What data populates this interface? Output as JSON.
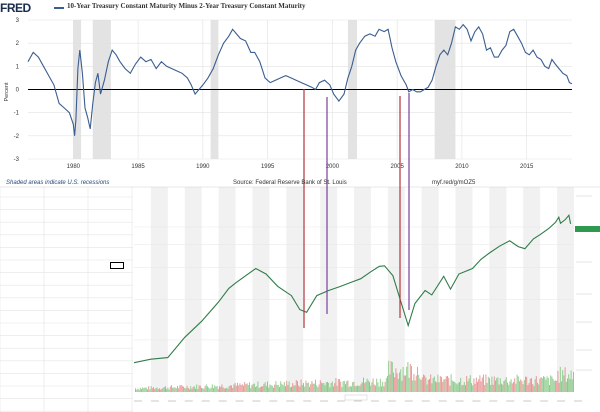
{
  "header": {
    "logo_text": "FRED",
    "title": "10-Year Treasury Constant Maturity Minus 2-Year Treasury Constant Maturity"
  },
  "footer": {
    "note": "Shaded areas indicate U.S. recessions",
    "source": "Source: Federal Reserve Bank of St. Louis",
    "url": "myf.red/g/mOZ5"
  },
  "colors": {
    "fred_line": "#3a5e91",
    "recession_shade": "#e3e3e3",
    "marker_red": "#b5343a",
    "marker_purple": "#7b3fa0",
    "price_line": "#2f7d4a",
    "volume_green": "#6fbf6c",
    "volume_red": "#e07a78"
  },
  "chart_data": [
    {
      "type": "line",
      "title": "10-Year Treasury Constant Maturity Minus 2-Year Treasury Constant Maturity",
      "ylabel": "Percent",
      "xlabel": "",
      "xlim": [
        1976.5,
        2018.5
      ],
      "ylim": [
        -3,
        3
      ],
      "x_ticks": [
        1980,
        1985,
        1990,
        1995,
        2000,
        2005,
        2010,
        2015
      ],
      "y_ticks": [
        -3,
        -2,
        -1,
        0,
        1,
        2,
        3
      ],
      "recessions": [
        [
          1980.0,
          1980.6
        ],
        [
          1981.5,
          1982.9
        ],
        [
          1990.6,
          1991.2
        ],
        [
          2001.2,
          2001.9
        ],
        [
          2007.9,
          2009.5
        ]
      ],
      "series": [
        {
          "values": [
            [
              1976.5,
              1.2
            ],
            [
              1976.9,
              1.6
            ],
            [
              1977.3,
              1.4
            ],
            [
              1977.7,
              1.0
            ],
            [
              1978.1,
              0.6
            ],
            [
              1978.5,
              0.2
            ],
            [
              1978.9,
              -0.6
            ],
            [
              1979.3,
              -0.8
            ],
            [
              1979.7,
              -1.0
            ],
            [
              1980.0,
              -1.5
            ],
            [
              1980.1,
              -2.0
            ],
            [
              1980.2,
              -1.3
            ],
            [
              1980.35,
              0.9
            ],
            [
              1980.5,
              1.7
            ],
            [
              1980.7,
              0.7
            ],
            [
              1980.9,
              -0.8
            ],
            [
              1981.1,
              -1.2
            ],
            [
              1981.3,
              -1.7
            ],
            [
              1981.5,
              -0.6
            ],
            [
              1981.7,
              0.3
            ],
            [
              1981.9,
              0.7
            ],
            [
              1982.1,
              -0.2
            ],
            [
              1982.4,
              0.4
            ],
            [
              1982.7,
              1.2
            ],
            [
              1983.0,
              1.7
            ],
            [
              1983.3,
              1.5
            ],
            [
              1983.6,
              1.2
            ],
            [
              1984.0,
              0.9
            ],
            [
              1984.4,
              0.7
            ],
            [
              1984.8,
              1.1
            ],
            [
              1985.2,
              1.4
            ],
            [
              1985.6,
              1.2
            ],
            [
              1986.0,
              1.3
            ],
            [
              1986.4,
              0.9
            ],
            [
              1986.8,
              1.2
            ],
            [
              1987.2,
              1.0
            ],
            [
              1987.6,
              0.9
            ],
            [
              1988.0,
              0.8
            ],
            [
              1988.4,
              0.7
            ],
            [
              1988.8,
              0.5
            ],
            [
              1989.1,
              0.2
            ],
            [
              1989.4,
              -0.2
            ],
            [
              1989.7,
              0.0
            ],
            [
              1990.0,
              0.2
            ],
            [
              1990.4,
              0.5
            ],
            [
              1990.8,
              0.9
            ],
            [
              1991.2,
              1.5
            ],
            [
              1991.6,
              2.0
            ],
            [
              1992.0,
              2.3
            ],
            [
              1992.3,
              2.6
            ],
            [
              1992.6,
              2.4
            ],
            [
              1992.9,
              2.2
            ],
            [
              1993.3,
              2.1
            ],
            [
              1993.7,
              1.6
            ],
            [
              1994.0,
              1.6
            ],
            [
              1994.4,
              1.2
            ],
            [
              1994.8,
              0.5
            ],
            [
              1995.2,
              0.3
            ],
            [
              1995.6,
              0.4
            ],
            [
              1996.0,
              0.5
            ],
            [
              1996.4,
              0.6
            ],
            [
              1996.8,
              0.5
            ],
            [
              1997.2,
              0.4
            ],
            [
              1997.6,
              0.3
            ],
            [
              1998.0,
              0.2
            ],
            [
              1998.4,
              0.1
            ],
            [
              1998.7,
              0.0
            ],
            [
              1999.0,
              0.3
            ],
            [
              1999.4,
              0.4
            ],
            [
              1999.8,
              0.2
            ],
            [
              2000.1,
              -0.2
            ],
            [
              2000.5,
              -0.5
            ],
            [
              2000.9,
              -0.2
            ],
            [
              2001.2,
              0.5
            ],
            [
              2001.5,
              1.0
            ],
            [
              2001.8,
              1.7
            ],
            [
              2002.1,
              2.0
            ],
            [
              2002.5,
              2.3
            ],
            [
              2002.9,
              2.4
            ],
            [
              2003.3,
              2.3
            ],
            [
              2003.6,
              2.6
            ],
            [
              2004.0,
              2.5
            ],
            [
              2004.3,
              2.6
            ],
            [
              2004.6,
              1.8
            ],
            [
              2004.9,
              1.2
            ],
            [
              2005.3,
              0.6
            ],
            [
              2005.7,
              0.2
            ],
            [
              2005.9,
              -0.1
            ],
            [
              2006.2,
              0.0
            ],
            [
              2006.5,
              -0.1
            ],
            [
              2006.8,
              -0.1
            ],
            [
              2007.1,
              0.0
            ],
            [
              2007.4,
              0.1
            ],
            [
              2007.7,
              0.4
            ],
            [
              2008.0,
              1.0
            ],
            [
              2008.3,
              1.5
            ],
            [
              2008.6,
              1.7
            ],
            [
              2008.9,
              1.5
            ],
            [
              2009.2,
              2.0
            ],
            [
              2009.5,
              2.7
            ],
            [
              2009.8,
              2.6
            ],
            [
              2010.1,
              2.8
            ],
            [
              2010.4,
              2.6
            ],
            [
              2010.7,
              2.1
            ],
            [
              2011.0,
              2.5
            ],
            [
              2011.3,
              2.7
            ],
            [
              2011.6,
              2.4
            ],
            [
              2011.9,
              1.7
            ],
            [
              2012.2,
              1.8
            ],
            [
              2012.5,
              1.4
            ],
            [
              2012.8,
              1.4
            ],
            [
              2013.1,
              1.7
            ],
            [
              2013.4,
              1.9
            ],
            [
              2013.7,
              2.5
            ],
            [
              2014.0,
              2.6
            ],
            [
              2014.3,
              2.3
            ],
            [
              2014.6,
              2.0
            ],
            [
              2014.9,
              1.6
            ],
            [
              2015.2,
              1.5
            ],
            [
              2015.5,
              1.7
            ],
            [
              2015.8,
              1.4
            ],
            [
              2016.1,
              1.3
            ],
            [
              2016.4,
              1.0
            ],
            [
              2016.7,
              0.9
            ],
            [
              2016.95,
              1.3
            ],
            [
              2017.2,
              1.1
            ],
            [
              2017.5,
              0.9
            ],
            [
              2017.8,
              0.7
            ],
            [
              2018.1,
              0.6
            ],
            [
              2018.3,
              0.3
            ],
            [
              2018.5,
              0.25
            ]
          ]
        }
      ],
      "annotations": [
        {
          "label": "red vertical marker",
          "x": 1998.2
        },
        {
          "label": "purple vertical marker",
          "x": 2000.2
        },
        {
          "label": "red vertical marker",
          "x": 2006.1
        },
        {
          "label": "purple vertical marker",
          "x": 2006.9
        }
      ]
    },
    {
      "type": "line",
      "title": "",
      "xlabel": "",
      "ylabel": "",
      "xlim": [
        1993,
        2019
      ],
      "y_scale": "log",
      "grid": true,
      "price": [
        [
          1993.0,
          45
        ],
        [
          1994.0,
          47
        ],
        [
          1995.0,
          48
        ],
        [
          1996.0,
          62
        ],
        [
          1997.0,
          76
        ],
        [
          1998.0,
          97
        ],
        [
          1998.6,
          115
        ],
        [
          1999.0,
          123
        ],
        [
          1999.6,
          135
        ],
        [
          2000.2,
          148
        ],
        [
          2000.8,
          138
        ],
        [
          2001.5,
          118
        ],
        [
          2002.3,
          105
        ],
        [
          2002.8,
          88
        ],
        [
          2003.2,
          85
        ],
        [
          2003.8,
          105
        ],
        [
          2004.5,
          112
        ],
        [
          2005.2,
          118
        ],
        [
          2005.8,
          124
        ],
        [
          2006.4,
          130
        ],
        [
          2007.0,
          142
        ],
        [
          2007.5,
          152
        ],
        [
          2007.8,
          153
        ],
        [
          2008.3,
          135
        ],
        [
          2008.8,
          95
        ],
        [
          2009.2,
          72
        ],
        [
          2009.6,
          95
        ],
        [
          2010.2,
          112
        ],
        [
          2010.6,
          106
        ],
        [
          2011.3,
          134
        ],
        [
          2011.7,
          114
        ],
        [
          2012.2,
          138
        ],
        [
          2013.0,
          148
        ],
        [
          2013.5,
          166
        ],
        [
          2014.0,
          180
        ],
        [
          2014.6,
          196
        ],
        [
          2015.2,
          210
        ],
        [
          2015.7,
          195
        ],
        [
          2016.1,
          190
        ],
        [
          2016.6,
          215
        ],
        [
          2017.0,
          227
        ],
        [
          2017.5,
          245
        ],
        [
          2017.9,
          265
        ],
        [
          2018.1,
          283
        ],
        [
          2018.2,
          262
        ],
        [
          2018.5,
          275
        ],
        [
          2018.7,
          290
        ],
        [
          2018.8,
          260
        ]
      ],
      "volume_visible": true,
      "annotations": [
        {
          "label": "red vertical marker",
          "x": 1998.5
        },
        {
          "label": "purple vertical marker",
          "x": 2000.3
        },
        {
          "label": "red vertical marker",
          "x": 2006.2
        },
        {
          "label": "purple vertical marker",
          "x": 2006.8
        }
      ]
    }
  ]
}
